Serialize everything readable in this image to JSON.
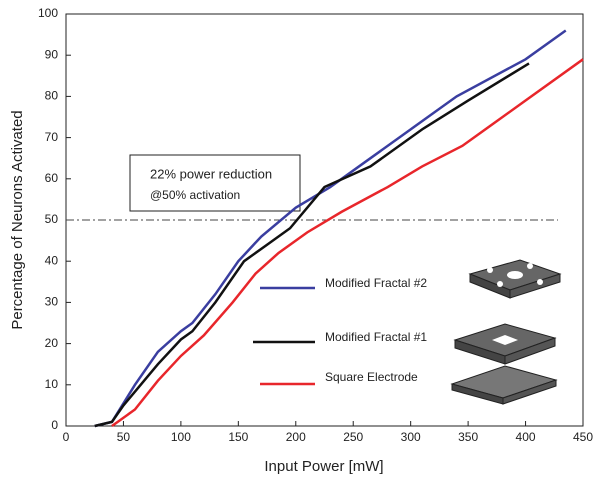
{
  "chart_data": {
    "type": "line",
    "x_label": "Input Power [mW]",
    "y_label": "Percentage of Neurons Activated",
    "xlim": [
      0,
      450
    ],
    "xticks": [
      0,
      50,
      100,
      150,
      200,
      250,
      300,
      350,
      400,
      450
    ],
    "ylim": [
      0,
      100
    ],
    "yticks": [
      0,
      10,
      20,
      30,
      40,
      50,
      60,
      70,
      80,
      90,
      100
    ],
    "hline": 50,
    "annotation": [
      "22% power reduction",
      "@50% activation"
    ],
    "series": [
      {
        "name": "Modified Fractal #2",
        "color": "#3a3ea0",
        "x": [
          25,
          40,
          60,
          80,
          100,
          110,
          130,
          150,
          170,
          200,
          230,
          260,
          300,
          340,
          400,
          435
        ],
        "values": [
          0,
          1,
          10,
          18,
          23,
          25,
          32,
          40,
          46,
          53,
          58,
          64,
          72,
          80,
          89,
          96
        ]
      },
      {
        "name": "Modified Fractal #1",
        "color": "#111111",
        "x": [
          25,
          40,
          50,
          65,
          80,
          100,
          110,
          130,
          155,
          175,
          195,
          225,
          265,
          310,
          350,
          403
        ],
        "values": [
          0,
          1,
          5,
          10,
          15,
          21,
          23,
          30,
          40,
          44,
          48,
          58,
          63,
          72,
          79,
          88
        ]
      },
      {
        "name": "Square Electrode",
        "color": "#e8262b",
        "x": [
          40,
          60,
          80,
          100,
          120,
          145,
          165,
          185,
          210,
          240,
          280,
          310,
          345,
          400,
          450
        ],
        "values": [
          0,
          4,
          11,
          17,
          22,
          30,
          37,
          42,
          47,
          52,
          58,
          63,
          68,
          79,
          89
        ]
      }
    ]
  }
}
